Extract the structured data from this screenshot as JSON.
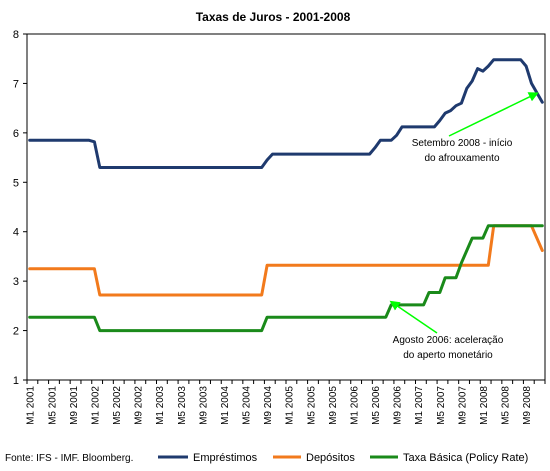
{
  "chart_data": {
    "type": "line",
    "title": "Taxas de Juros - 2001-2008",
    "xlabel": "",
    "ylabel": "",
    "ylim": [
      1,
      8
    ],
    "yticks": [
      "1",
      "2",
      "3",
      "4",
      "5",
      "6",
      "7",
      "8"
    ],
    "grid": false,
    "legend_position": "bottom",
    "x_tick_labels": [
      "M1 2001",
      "M5 2001",
      "M9 2001",
      "M1 2002",
      "M5 2002",
      "M9 2002",
      "M1 2003",
      "M5 2003",
      "M9 2003",
      "M1 2004",
      "M5 2004",
      "M9 2004",
      "M1 2005",
      "M5 2005",
      "M9 2005",
      "M1 2006",
      "M5 2006",
      "M9 2006",
      "M1 2007",
      "M5 2007",
      "M9 2007",
      "M1 2008",
      "M5 2008",
      "M9 2008"
    ],
    "series": [
      {
        "name": "Empréstimos",
        "color": "#1f3a6e",
        "points": [
          [
            "M1 2001",
            5.85
          ],
          [
            "M12 2001",
            5.85
          ],
          [
            "M1 2002",
            5.82
          ],
          [
            "M2 2002",
            5.3
          ],
          [
            "M8 2004",
            5.3
          ],
          [
            "M9 2004",
            5.45
          ],
          [
            "M10 2004",
            5.57
          ],
          [
            "M4 2006",
            5.57
          ],
          [
            "M5 2006",
            5.7
          ],
          [
            "M6 2006",
            5.85
          ],
          [
            "M7 2006",
            5.85
          ],
          [
            "M8 2006",
            5.85
          ],
          [
            "M9 2006",
            5.95
          ],
          [
            "M10 2006",
            6.12
          ],
          [
            "M4 2007",
            6.12
          ],
          [
            "M5 2007",
            6.25
          ],
          [
            "M6 2007",
            6.4
          ],
          [
            "M7 2007",
            6.45
          ],
          [
            "M8 2007",
            6.55
          ],
          [
            "M9 2007",
            6.6
          ],
          [
            "M10 2007",
            6.9
          ],
          [
            "M11 2007",
            7.05
          ],
          [
            "M12 2007",
            7.3
          ],
          [
            "M1 2008",
            7.25
          ],
          [
            "M2 2008",
            7.35
          ],
          [
            "M3 2008",
            7.48
          ],
          [
            "M8 2008",
            7.48
          ],
          [
            "M9 2008",
            7.35
          ],
          [
            "M10 2008",
            7.0
          ],
          [
            "M12 2008",
            6.62
          ]
        ]
      },
      {
        "name": "Depósitos",
        "color": "#f27a1c",
        "points": [
          [
            "M1 2001",
            3.25
          ],
          [
            "M1 2002",
            3.25
          ],
          [
            "M2 2002",
            2.72
          ],
          [
            "M8 2004",
            2.72
          ],
          [
            "M9 2004",
            3.32
          ],
          [
            "M2 2008",
            3.32
          ],
          [
            "M3 2008",
            4.12
          ],
          [
            "M10 2008",
            4.12
          ],
          [
            "M12 2008",
            3.62
          ]
        ]
      },
      {
        "name": "Taxa Básica (Policy Rate)",
        "color": "#1a8a1a",
        "points": [
          [
            "M1 2001",
            2.27
          ],
          [
            "M1 2002",
            2.27
          ],
          [
            "M2 2002",
            2.0
          ],
          [
            "M8 2004",
            2.0
          ],
          [
            "M9 2004",
            2.27
          ],
          [
            "M7 2006",
            2.27
          ],
          [
            "M8 2006",
            2.52
          ],
          [
            "M2 2007",
            2.52
          ],
          [
            "M3 2007",
            2.77
          ],
          [
            "M5 2007",
            2.77
          ],
          [
            "M6 2007",
            3.07
          ],
          [
            "M8 2007",
            3.07
          ],
          [
            "M9 2007",
            3.37
          ],
          [
            "M10 2007",
            3.62
          ],
          [
            "M11 2007",
            3.87
          ],
          [
            "M1 2008",
            3.87
          ],
          [
            "M2 2008",
            4.12
          ],
          [
            "M12 2008",
            4.12
          ]
        ]
      }
    ],
    "annotations": [
      {
        "name": "setembro-2008",
        "lines": [
          "Setembro 2008 - início",
          "do afrouxamento"
        ],
        "target_x": "M11 2008",
        "target_y": 6.8,
        "color": "#00ff00"
      },
      {
        "name": "agosto-2006",
        "lines": [
          "Agosto 2006: aceleração",
          "do aperto monetário"
        ],
        "target_x": "M8 2006",
        "target_y": 2.58,
        "color": "#00ff00"
      }
    ],
    "source": "Fonte: IFS - IMF. Bloomberg."
  }
}
